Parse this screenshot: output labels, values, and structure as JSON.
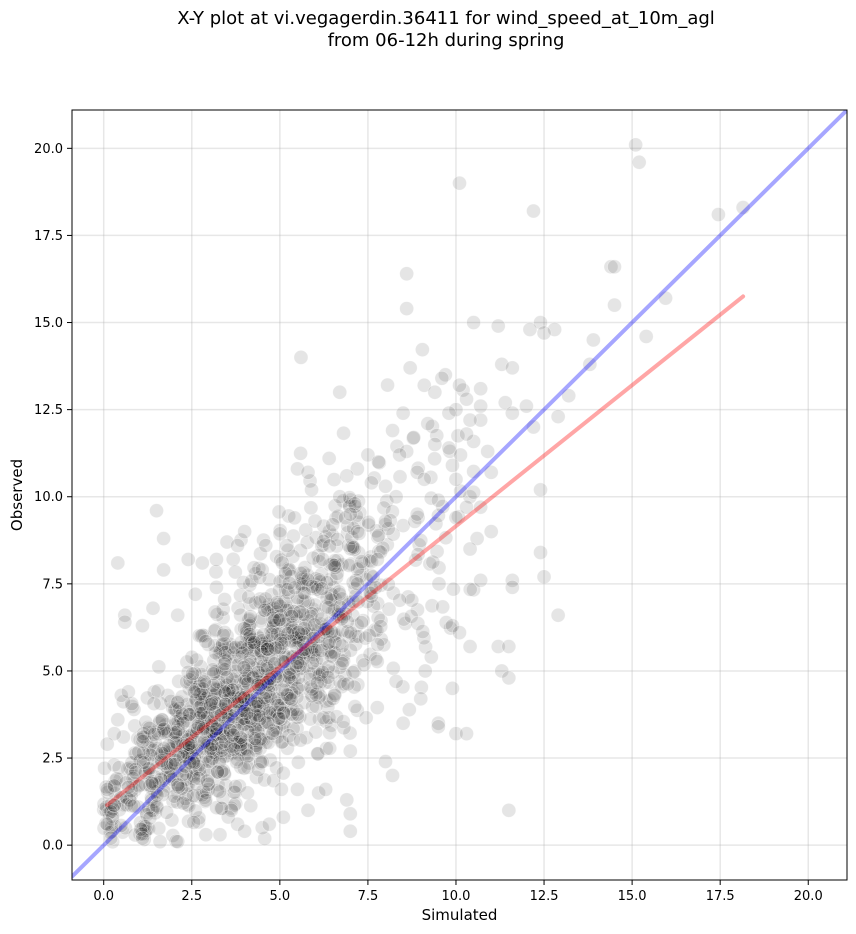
{
  "chart_data": {
    "type": "scatter",
    "title_lines": [
      "X-Y plot at vi.vegagerdin.36411 for wind_speed_at_10m_agl",
      "from 06-12h during spring"
    ],
    "xlabel": "Simulated",
    "ylabel": "Observed",
    "xlim": [
      -0.9,
      21.1
    ],
    "ylim": [
      -1.0,
      21.1
    ],
    "xticks": [
      0.0,
      2.5,
      5.0,
      7.5,
      10.0,
      12.5,
      15.0,
      17.5,
      20.0
    ],
    "xtick_labels": [
      "0.0",
      "2.5",
      "5.0",
      "7.5",
      "10.0",
      "12.5",
      "15.0",
      "17.5",
      "20.0"
    ],
    "yticks": [
      0.0,
      2.5,
      5.0,
      7.5,
      10.0,
      12.5,
      15.0,
      17.5,
      20.0
    ],
    "ytick_labels": [
      "0.0",
      "2.5",
      "5.0",
      "7.5",
      "10.0",
      "12.5",
      "15.0",
      "17.5",
      "20.0"
    ],
    "grid": true,
    "marker_color": "#000000",
    "marker_alpha": 0.1,
    "identity_line": {
      "color": "#0000ff",
      "alpha": 0.35,
      "x": [
        -0.9,
        21.1
      ],
      "y": [
        -0.9,
        21.1
      ]
    },
    "fit_line": {
      "color": "#ff0000",
      "alpha": 0.35,
      "x": [
        0.1,
        18.15
      ],
      "y": [
        1.15,
        15.75
      ]
    },
    "points": [
      [
        15.1,
        20.1
      ],
      [
        15.2,
        19.6
      ],
      [
        10.1,
        19.0
      ],
      [
        18.15,
        18.3
      ],
      [
        12.2,
        18.2
      ],
      [
        17.45,
        18.1
      ],
      [
        14.4,
        16.6
      ],
      [
        14.5,
        16.6
      ],
      [
        8.6,
        16.4
      ],
      [
        15.95,
        15.7
      ],
      [
        14.5,
        15.5
      ],
      [
        8.6,
        15.4
      ],
      [
        10.5,
        15.0
      ],
      [
        12.4,
        15.0
      ],
      [
        11.2,
        14.9
      ],
      [
        12.8,
        14.8
      ],
      [
        12.1,
        14.8
      ],
      [
        12.5,
        14.7
      ],
      [
        15.4,
        14.6
      ],
      [
        13.9,
        14.5
      ],
      [
        5.6,
        14.0
      ],
      [
        11.3,
        13.8
      ],
      [
        13.8,
        13.8
      ],
      [
        11.6,
        13.7
      ],
      [
        8.7,
        13.7
      ],
      [
        9.7,
        13.5
      ],
      [
        9.6,
        13.4
      ],
      [
        10.1,
        13.2
      ],
      [
        9.1,
        13.2
      ],
      [
        10.7,
        13.1
      ],
      [
        6.7,
        13.0
      ],
      [
        9.4,
        13.0
      ],
      [
        13.2,
        12.9
      ],
      [
        10.3,
        12.8
      ],
      [
        11.4,
        12.7
      ],
      [
        12.0,
        12.6
      ],
      [
        10.7,
        12.6
      ],
      [
        10.0,
        12.5
      ],
      [
        11.6,
        12.4
      ],
      [
        9.8,
        12.4
      ],
      [
        8.5,
        12.4
      ],
      [
        12.9,
        12.3
      ],
      [
        10.7,
        12.2
      ],
      [
        10.4,
        12.2
      ],
      [
        9.2,
        12.1
      ],
      [
        12.2,
        12.0
      ],
      [
        8.2,
        11.9
      ],
      [
        10.3,
        11.8
      ],
      [
        8.8,
        11.7
      ],
      [
        9.4,
        11.5
      ],
      [
        9.8,
        11.4
      ],
      [
        8.6,
        11.3
      ],
      [
        10.9,
        11.3
      ],
      [
        7.5,
        11.2
      ],
      [
        8.4,
        11.2
      ],
      [
        7.8,
        11.0
      ],
      [
        6.4,
        11.1
      ],
      [
        9.9,
        10.9
      ],
      [
        7.2,
        10.8
      ],
      [
        5.5,
        10.8
      ],
      [
        8.9,
        10.7
      ],
      [
        5.8,
        10.7
      ],
      [
        10.0,
        10.5
      ],
      [
        11.0,
        10.7
      ],
      [
        9.1,
        10.5
      ],
      [
        6.9,
        10.6
      ],
      [
        7.6,
        10.4
      ],
      [
        8.0,
        10.3
      ],
      [
        12.4,
        10.2
      ],
      [
        5.9,
        10.2
      ],
      [
        8.3,
        10.0
      ],
      [
        6.7,
        10.0
      ],
      [
        9.5,
        9.9
      ],
      [
        10.3,
        9.7
      ],
      [
        10.7,
        9.7
      ],
      [
        1.5,
        9.6
      ],
      [
        7.0,
        9.5
      ],
      [
        8.9,
        9.5
      ],
      [
        10.0,
        9.4
      ],
      [
        6.0,
        9.3
      ],
      [
        11.0,
        9.0
      ],
      [
        4.0,
        9.0
      ],
      [
        6.5,
        9.2
      ],
      [
        8.0,
        9.3
      ],
      [
        3.5,
        8.7
      ],
      [
        3.8,
        8.6
      ],
      [
        4.6,
        8.6
      ],
      [
        5.2,
        8.6
      ],
      [
        1.7,
        8.8
      ],
      [
        10.6,
        8.8
      ],
      [
        10.4,
        8.5
      ],
      [
        12.4,
        8.4
      ],
      [
        2.4,
        8.2
      ],
      [
        2.8,
        8.1
      ],
      [
        3.2,
        8.2
      ],
      [
        0.4,
        8.1
      ],
      [
        4.5,
        7.9
      ],
      [
        1.7,
        7.9
      ],
      [
        12.5,
        7.7
      ],
      [
        10.7,
        7.6
      ],
      [
        11.6,
        7.6
      ],
      [
        11.6,
        7.4
      ],
      [
        3.2,
        7.4
      ],
      [
        2.6,
        7.2
      ],
      [
        1.4,
        6.8
      ],
      [
        0.6,
        6.6
      ],
      [
        2.1,
        6.6
      ],
      [
        12.9,
        6.6
      ],
      [
        0.6,
        6.4
      ],
      [
        1.1,
        6.3
      ],
      [
        9.9,
        6.3
      ],
      [
        10.1,
        6.1
      ],
      [
        11.2,
        5.7
      ],
      [
        11.5,
        5.7
      ],
      [
        10.4,
        5.7
      ],
      [
        9.3,
        5.4
      ],
      [
        11.3,
        5.0
      ],
      [
        11.5,
        4.8
      ],
      [
        8.3,
        4.7
      ],
      [
        9.9,
        4.5
      ],
      [
        0.5,
        4.3
      ],
      [
        0.7,
        4.4
      ],
      [
        9.0,
        4.2
      ],
      [
        0.4,
        3.6
      ],
      [
        9.5,
        3.5
      ],
      [
        9.5,
        3.4
      ],
      [
        8.5,
        3.5
      ],
      [
        0.3,
        3.2
      ],
      [
        10.0,
        3.2
      ],
      [
        10.3,
        3.2
      ],
      [
        7.0,
        2.7
      ],
      [
        0.1,
        2.9
      ],
      [
        8.0,
        2.4
      ],
      [
        8.2,
        2.0
      ],
      [
        5.5,
        1.6
      ],
      [
        6.1,
        1.5
      ],
      [
        6.3,
        1.6
      ],
      [
        6.9,
        1.3
      ],
      [
        5.8,
        1.0
      ],
      [
        11.5,
        1.0
      ],
      [
        7.0,
        0.9
      ],
      [
        7.0,
        0.4
      ],
      [
        4.5,
        0.5
      ],
      [
        2.9,
        0.3
      ],
      [
        0.1,
        0.6
      ],
      [
        0.2,
        0.2
      ],
      [
        0.1,
        1.6
      ],
      [
        0.3,
        1.7
      ],
      [
        1.1,
        0.2
      ],
      [
        1.6,
        0.1
      ],
      [
        2.1,
        0.1
      ],
      [
        3.3,
        0.3
      ],
      [
        3.8,
        0.6
      ],
      [
        4.0,
        0.4
      ],
      [
        4.7,
        0.6
      ],
      [
        5.1,
        0.8
      ]
    ],
    "cloud_seed": 36411,
    "cloud_count": 1450
  }
}
